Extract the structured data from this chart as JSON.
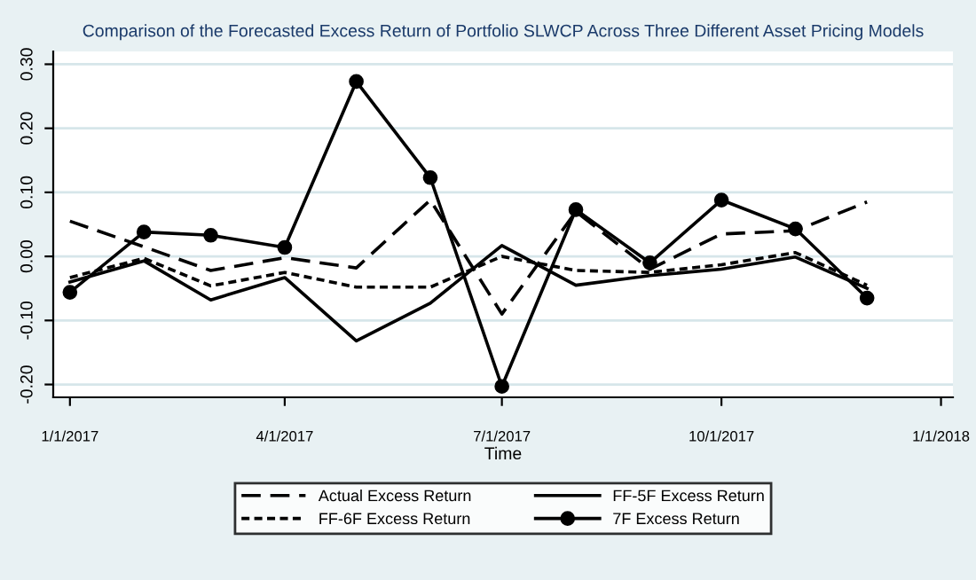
{
  "chart_data": {
    "type": "line",
    "title": "Comparison of the Forecasted Excess Return of Portfolio SLWCP Across Three Different Asset Pricing Models",
    "xlabel": "Time",
    "x": [
      "2017-01-01",
      "2017-02-01",
      "2017-03-01",
      "2017-04-01",
      "2017-05-01",
      "2017-06-01",
      "2017-07-01",
      "2017-08-01",
      "2017-09-01",
      "2017-10-01",
      "2017-11-01",
      "2017-12-01"
    ],
    "series": [
      {
        "name": "Actual Excess Return",
        "color": "#000000",
        "line_style": "dashed",
        "marker": "none",
        "values": [
          0.055,
          0.015,
          -0.022,
          -0.002,
          -0.018,
          0.088,
          -0.09,
          0.07,
          -0.02,
          0.035,
          0.04,
          0.085
        ]
      },
      {
        "name": "FF-5F Excess Return",
        "color": "#000000",
        "line_style": "solid",
        "marker": "none",
        "values": [
          -0.04,
          -0.007,
          -0.068,
          -0.033,
          -0.132,
          -0.073,
          0.017,
          -0.045,
          -0.03,
          -0.02,
          -0.001,
          -0.05
        ]
      },
      {
        "name": "FF-6F Excess Return",
        "color": "#000000",
        "line_style": "dotted",
        "marker": "none",
        "values": [
          -0.033,
          -0.003,
          -0.046,
          -0.025,
          -0.048,
          -0.048,
          0.0,
          -0.022,
          -0.025,
          -0.013,
          0.006,
          -0.045
        ]
      },
      {
        "name": "7F Excess Return",
        "color": "#000000",
        "line_style": "solid",
        "marker": "circle",
        "values": [
          -0.056,
          0.038,
          0.033,
          0.014,
          0.273,
          0.123,
          -0.203,
          0.073,
          -0.01,
          0.088,
          0.043,
          -0.065
        ]
      }
    ],
    "xlim": [
      "2016-12-25",
      "2018-01-06"
    ],
    "xticks": [
      {
        "value": "2017-01-01",
        "label": "1/1/2017"
      },
      {
        "value": "2017-04-01",
        "label": "4/1/2017"
      },
      {
        "value": "2017-07-01",
        "label": "7/1/2017"
      },
      {
        "value": "2017-10-01",
        "label": "10/1/2017"
      },
      {
        "value": "2018-01-01",
        "label": "1/1/2018"
      }
    ],
    "ylim": [
      -0.22,
      0.32
    ],
    "yticks": [
      {
        "value": -0.2,
        "label": "-0.20"
      },
      {
        "value": -0.1,
        "label": "-0.10"
      },
      {
        "value": 0.0,
        "label": "0.00"
      },
      {
        "value": 0.1,
        "label": "0.10"
      },
      {
        "value": 0.2,
        "label": "0.20"
      },
      {
        "value": 0.3,
        "label": "0.30"
      }
    ],
    "grid": "y",
    "legend": "bottom"
  }
}
